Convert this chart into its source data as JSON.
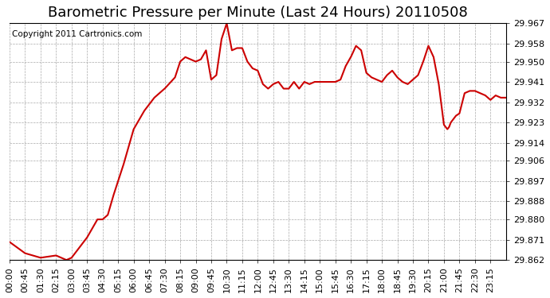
{
  "title": "Barometric Pressure per Minute (Last 24 Hours) 20110508",
  "copyright": "Copyright 2011 Cartronics.com",
  "line_color": "#cc0000",
  "background_color": "#ffffff",
  "plot_background": "#ffffff",
  "grid_color": "#aaaaaa",
  "ylim": [
    29.862,
    29.967
  ],
  "yticks": [
    29.862,
    29.871,
    29.88,
    29.888,
    29.897,
    29.906,
    29.914,
    29.923,
    29.932,
    29.941,
    29.95,
    29.958,
    29.967
  ],
  "xtick_positions": [
    0,
    45,
    90,
    135,
    180,
    225,
    270,
    315,
    360,
    405,
    450,
    495,
    540,
    585,
    630,
    675,
    720,
    765,
    810,
    855,
    900,
    945,
    990,
    1035,
    1080,
    1125,
    1170,
    1215,
    1260,
    1305,
    1350,
    1395
  ],
  "xtick_labels": [
    "00:00",
    "00:45",
    "01:30",
    "02:15",
    "03:00",
    "03:45",
    "04:30",
    "05:15",
    "06:00",
    "06:45",
    "07:30",
    "08:15",
    "09:00",
    "09:45",
    "10:30",
    "11:15",
    "12:00",
    "12:45",
    "13:30",
    "14:15",
    "15:00",
    "15:45",
    "16:30",
    "17:15",
    "18:00",
    "18:45",
    "19:30",
    "20:15",
    "21:00",
    "21:45",
    "22:30",
    "23:15"
  ],
  "title_fontsize": 13,
  "copyright_fontsize": 7.5,
  "tick_fontsize": 8,
  "line_width": 1.5
}
